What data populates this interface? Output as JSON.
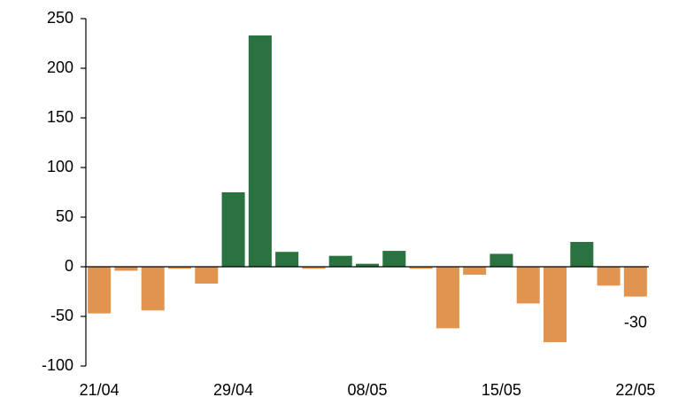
{
  "chart_data": {
    "type": "bar",
    "categories": [
      "21/04",
      null,
      null,
      null,
      null,
      "29/04",
      null,
      null,
      null,
      null,
      "08/05",
      null,
      null,
      null,
      null,
      "15/05",
      null,
      null,
      null,
      null,
      "22/05"
    ],
    "values": [
      -47,
      -4,
      -44,
      -2,
      -17,
      75,
      233,
      15,
      -2,
      11,
      3,
      16,
      -2,
      -62,
      -8,
      13,
      -37,
      -76,
      25,
      -19,
      -30
    ],
    "value_labels": [
      null,
      null,
      null,
      null,
      null,
      null,
      null,
      null,
      null,
      null,
      null,
      null,
      null,
      null,
      null,
      null,
      null,
      null,
      null,
      null,
      "-30"
    ],
    "positive_color": "#2a7340",
    "negative_color": "#e0944f",
    "ylim": [
      -100,
      250
    ],
    "yticks": [
      -100,
      -50,
      0,
      50,
      100,
      150,
      200,
      250
    ],
    "grid": false
  }
}
